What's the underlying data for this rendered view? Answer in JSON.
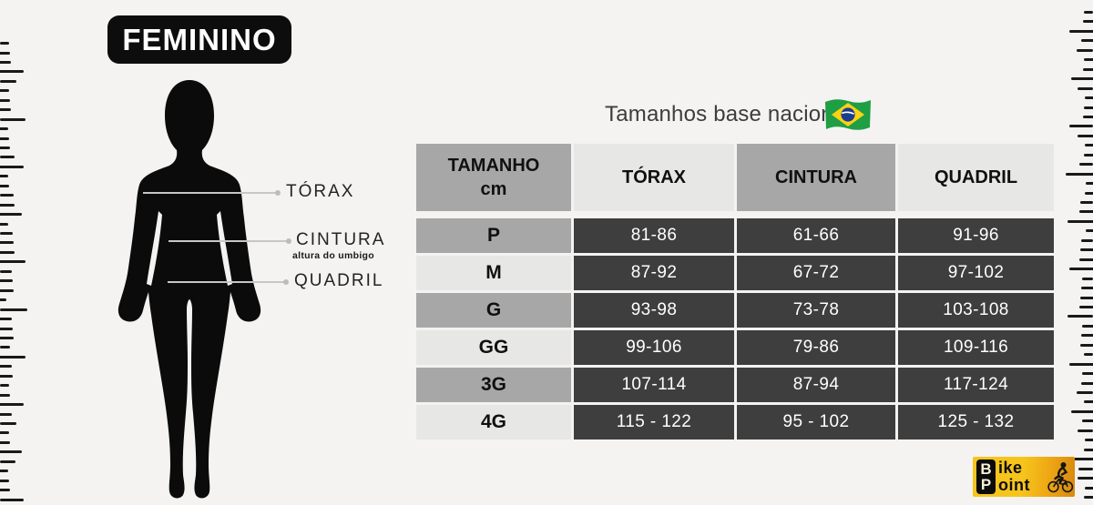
{
  "title": "FEMININO",
  "subtitle": "Tamanhos base nacional",
  "flag_icon": "brazil-flag",
  "diagram": {
    "callouts": [
      {
        "label": "TÓRAX",
        "sublabel": ""
      },
      {
        "label": "CINTURA",
        "sublabel": "altura do umbigo"
      },
      {
        "label": "QUADRIL",
        "sublabel": ""
      }
    ]
  },
  "table": {
    "columns": [
      {
        "label": "TAMANHO",
        "sublabel": "cm"
      },
      {
        "label": "TÓRAX",
        "sublabel": ""
      },
      {
        "label": "CINTURA",
        "sublabel": ""
      },
      {
        "label": "QUADRIL",
        "sublabel": ""
      }
    ],
    "rows": [
      {
        "size": "P",
        "values": [
          "81-86",
          "61-66",
          "91-96"
        ]
      },
      {
        "size": "M",
        "values": [
          "87-92",
          "67-72",
          "97-102"
        ]
      },
      {
        "size": "G",
        "values": [
          "93-98",
          "73-78",
          "103-108"
        ]
      },
      {
        "size": "GG",
        "values": [
          "99-106",
          "79-86",
          "109-116"
        ]
      },
      {
        "size": "3G",
        "values": [
          "107-114",
          "87-94",
          "117-124"
        ]
      },
      {
        "size": "4G",
        "values": [
          "115 - 122",
          "95 - 102",
          "125 - 132"
        ]
      }
    ]
  },
  "logo": {
    "stack_top": "B",
    "top_rest": "ike",
    "stack_bottom": "P",
    "bottom_rest": "oint"
  },
  "colors": {
    "background": "#f4f3f1",
    "header_gray": "#a7a7a7",
    "header_light": "#e7e7e6",
    "size_cell_gray": "#a7a7a7",
    "size_cell_light": "#e4e4e3",
    "value_cell_dark": "#3e3e3e",
    "silhouette_black": "#0b0b0b",
    "logo_yellow": "#f6c51c",
    "flag_green": "#1f9e44",
    "flag_yellow": "#fcd116",
    "flag_blue": "#1b3d8f"
  }
}
